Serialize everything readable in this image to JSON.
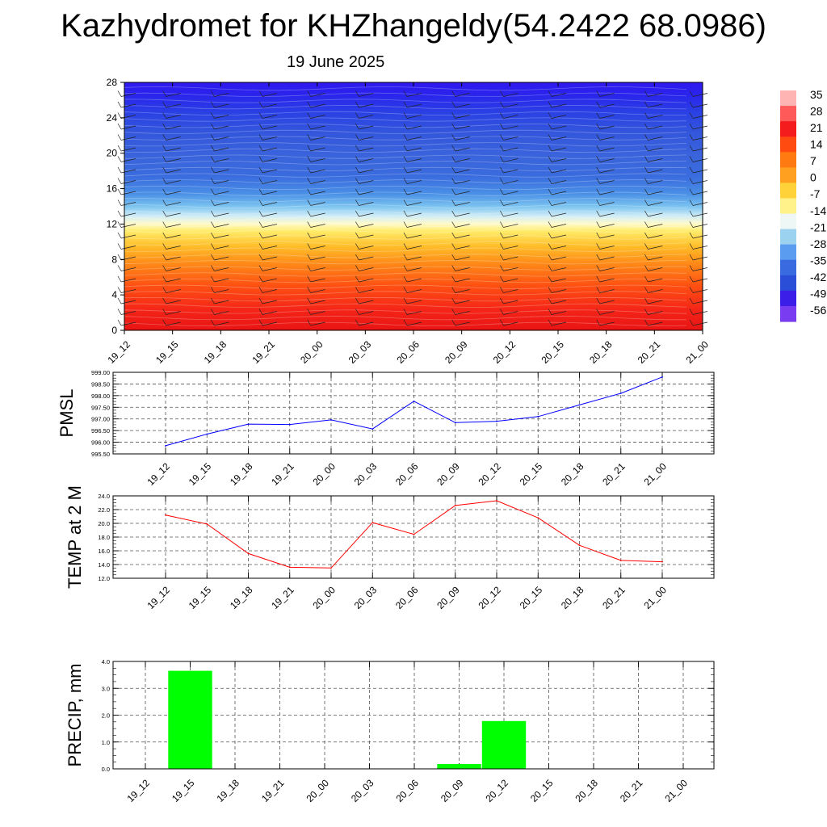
{
  "title": "Kazhydromet for KHZhangeldy(54.2422 68.0986)",
  "subtitle": "19 June 2025",
  "chart_data": [
    {
      "type": "heatmap",
      "name": "temperature-wind-cross-section",
      "y_ticks": [
        "0",
        "4",
        "8",
        "12",
        "16",
        "20",
        "24",
        "28"
      ],
      "ylim": [
        0,
        28
      ],
      "x_ticks": [
        "19_12",
        "19_15",
        "19_18",
        "19_21",
        "20_00",
        "20_03",
        "20_06",
        "20_09",
        "20_12",
        "20_15",
        "20_18",
        "20_21",
        "21_00"
      ],
      "colorbar_labels": [
        "35",
        "28",
        "21",
        "14",
        "7",
        "0",
        "-7",
        "-14",
        "-21",
        "-28",
        "-35",
        "-42",
        "-49",
        "-56"
      ],
      "colorbar_range": [
        -56,
        35
      ],
      "colors": [
        "#7a3cf0",
        "#3b1ee8",
        "#2a4ed8",
        "#3a6ae0",
        "#5a9cf0",
        "#9ad2f0",
        "#eef6f6",
        "#fff28a",
        "#ffd23a",
        "#ffa020",
        "#ff7a10",
        "#ff4a10",
        "#f41c1c",
        "#ff5a5a",
        "#ffb4b4"
      ]
    },
    {
      "type": "line",
      "ylabel": "PMSL",
      "categories": [
        "19_12",
        "19_15",
        "19_18",
        "19_21",
        "20_00",
        "20_03",
        "20_06",
        "20_09",
        "20_12",
        "20_15",
        "20_18",
        "20_21",
        "21_00"
      ],
      "values": [
        995.85,
        996.35,
        996.78,
        996.76,
        996.96,
        996.57,
        997.76,
        996.84,
        996.9,
        997.1,
        997.6,
        998.1,
        998.8
      ],
      "y_ticks": [
        "995.50",
        "996.00",
        "996.50",
        "997.00",
        "997.50",
        "998.00",
        "998.50",
        "999.00"
      ],
      "ylim": [
        995.5,
        999.0
      ],
      "color": "#0000ff",
      "grid": true
    },
    {
      "type": "line",
      "ylabel": "TEMP at 2 M",
      "categories": [
        "19_12",
        "19_15",
        "19_18",
        "19_21",
        "20_00",
        "20_03",
        "20_06",
        "20_09",
        "20_12",
        "20_15",
        "20_18",
        "20_21",
        "21_00"
      ],
      "values": [
        21.2,
        19.9,
        15.6,
        13.6,
        13.5,
        20.1,
        18.4,
        22.6,
        23.3,
        20.8,
        16.8,
        14.6,
        14.4
      ],
      "y_ticks": [
        "12.0",
        "14.0",
        "16.0",
        "18.0",
        "20.0",
        "22.0",
        "24.0"
      ],
      "ylim": [
        12.0,
        24.0
      ],
      "color": "#ff0000",
      "grid": true
    },
    {
      "type": "bar",
      "ylabel": "PRECIP, mm",
      "categories": [
        "19_12",
        "19_15",
        "19_18",
        "19_21",
        "20_00",
        "20_03",
        "20_06",
        "20_09",
        "20_12",
        "20_15",
        "20_18",
        "20_21",
        "21_00"
      ],
      "values": [
        0,
        3.65,
        0,
        0,
        0,
        0,
        0,
        0.18,
        1.78,
        0,
        0,
        0,
        0
      ],
      "y_ticks": [
        "0.0",
        "1.0",
        "2.0",
        "3.0",
        "4.0"
      ],
      "ylim": [
        0,
        4.0
      ],
      "color": "#00ff00",
      "grid": true
    }
  ]
}
